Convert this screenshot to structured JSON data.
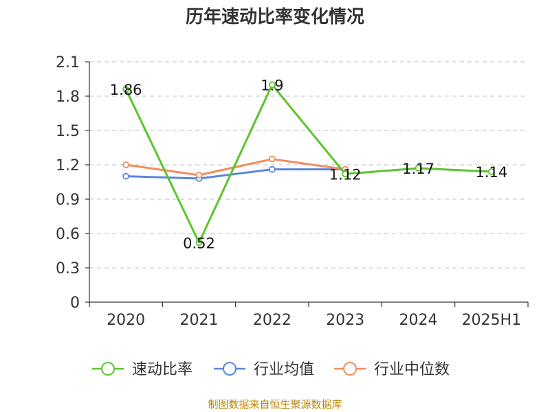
{
  "chart_data": {
    "type": "line",
    "title": "历年速动比率变化情况",
    "categories": [
      "2020",
      "2021",
      "2022",
      "2023",
      "2024",
      "2025H1"
    ],
    "ylim": [
      0,
      2.1
    ],
    "yticks": [
      "0",
      "0.3",
      "0.6",
      "0.9",
      "1.2",
      "1.5",
      "1.8",
      "2.1"
    ],
    "grid": true,
    "legend_position": "bottom",
    "series": [
      {
        "name": "速动比率",
        "color": "#5bc42a",
        "values": [
          1.86,
          0.52,
          1.9,
          1.12,
          1.17,
          1.14
        ],
        "labels": [
          "1.86",
          "0.52",
          "1.9",
          "1.12",
          "1.17",
          "1.14"
        ]
      },
      {
        "name": "行业均值",
        "color": "#5a85dc",
        "values": [
          1.1,
          1.08,
          1.16,
          1.16,
          null,
          null
        ]
      },
      {
        "name": "行业中位数",
        "color": "#f48c5c",
        "values": [
          1.2,
          1.11,
          1.25,
          1.16,
          null,
          null
        ]
      }
    ]
  },
  "source_text": "制图数据来自恒生聚源数据库"
}
